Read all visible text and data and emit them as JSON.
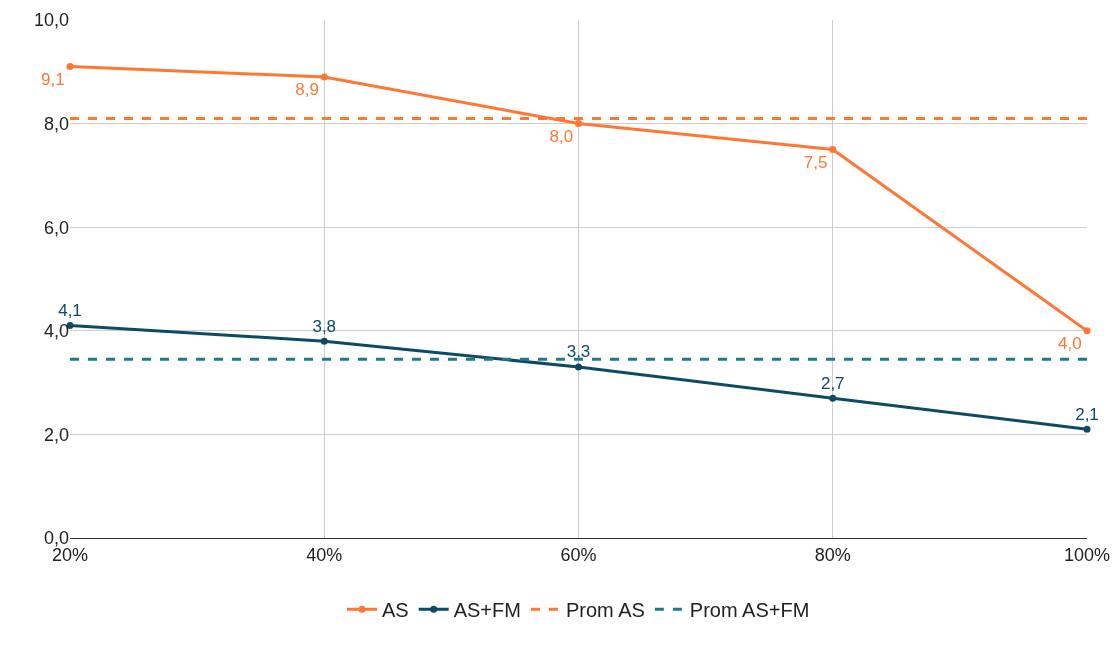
{
  "chart_data": {
    "type": "line",
    "categories": [
      "20%",
      "40%",
      "60%",
      "80%",
      "100%"
    ],
    "series": [
      {
        "name": "AS",
        "color": "#ff7733",
        "values": [
          9.1,
          8.9,
          8.0,
          7.5,
          4.0
        ],
        "value_labels": [
          "9,1",
          "8,9",
          "8,0",
          "7,5",
          "4,0"
        ],
        "marker": "circle",
        "line_style": "solid"
      },
      {
        "name": "AS+FM",
        "color": "#0d4a66",
        "values": [
          4.1,
          3.8,
          3.3,
          2.7,
          2.1
        ],
        "value_labels": [
          "4,1",
          "3,8",
          "3,3",
          "2,7",
          "2,1"
        ],
        "marker": "circle",
        "line_style": "solid"
      },
      {
        "name": "Prom AS",
        "color": "#ff7733",
        "values": [
          8.1,
          8.1,
          8.1,
          8.1,
          8.1
        ],
        "marker": "none",
        "line_style": "dashed"
      },
      {
        "name": "Prom AS+FM",
        "color": "#1f7a8c",
        "values": [
          3.45,
          3.45,
          3.45,
          3.45,
          3.45
        ],
        "marker": "none",
        "line_style": "dashed"
      }
    ],
    "ylim": [
      0,
      10
    ],
    "yticks": [
      {
        "value": 0,
        "label": "0,0"
      },
      {
        "value": 2,
        "label": "2,0"
      },
      {
        "value": 4,
        "label": "4,0"
      },
      {
        "value": 6,
        "label": "6,0"
      },
      {
        "value": 8,
        "label": "8,0"
      },
      {
        "value": 10,
        "label": "10,0"
      }
    ],
    "grid": true,
    "legend": "bottom"
  }
}
